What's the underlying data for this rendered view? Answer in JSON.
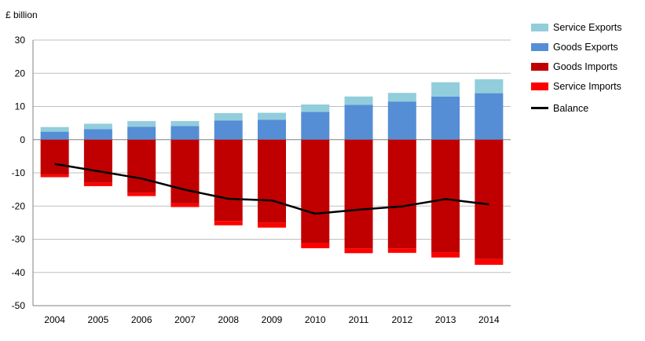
{
  "chart_data": {
    "type": "bar",
    "ylabel": "£ billion",
    "ylim": [
      -50,
      30
    ],
    "yticks": [
      30,
      20,
      10,
      0,
      -10,
      -20,
      -30,
      -40,
      -50
    ],
    "grid": true,
    "legend_position": "top-right",
    "categories": [
      "2004",
      "2005",
      "2006",
      "2007",
      "2008",
      "2009",
      "2010",
      "2011",
      "2012",
      "2013",
      "2014"
    ],
    "series": [
      {
        "name": "Service Exports",
        "kind": "bar",
        "color": "#92cddc",
        "values": [
          1.4,
          1.6,
          1.7,
          1.5,
          2.2,
          2.1,
          2.2,
          2.5,
          2.6,
          4.3,
          4.2
        ]
      },
      {
        "name": "Goods Exports",
        "kind": "bar",
        "color": "#558ed5",
        "values": [
          2.4,
          3.2,
          3.9,
          4.1,
          5.8,
          6.0,
          8.4,
          10.5,
          11.5,
          13.0,
          14.0
        ]
      },
      {
        "name": "Goods Imports",
        "kind": "bar",
        "color": "#c00000",
        "values": [
          -10.5,
          -13.0,
          -16.0,
          -19.2,
          -24.5,
          -25.0,
          -31.2,
          -32.8,
          -32.8,
          -34.0,
          -36.0
        ]
      },
      {
        "name": "Service Imports",
        "kind": "bar",
        "color": "#ff0000",
        "values": [
          -0.8,
          -1.0,
          -1.0,
          -1.1,
          -1.3,
          -1.5,
          -1.5,
          -1.4,
          -1.3,
          -1.5,
          -1.7
        ]
      },
      {
        "name": "Balance",
        "kind": "line",
        "color": "#000000",
        "values": [
          -7.3,
          -9.5,
          -11.7,
          -15.1,
          -17.8,
          -18.3,
          -22.3,
          -21.1,
          -20.1,
          -17.9,
          -19.5
        ]
      }
    ]
  }
}
